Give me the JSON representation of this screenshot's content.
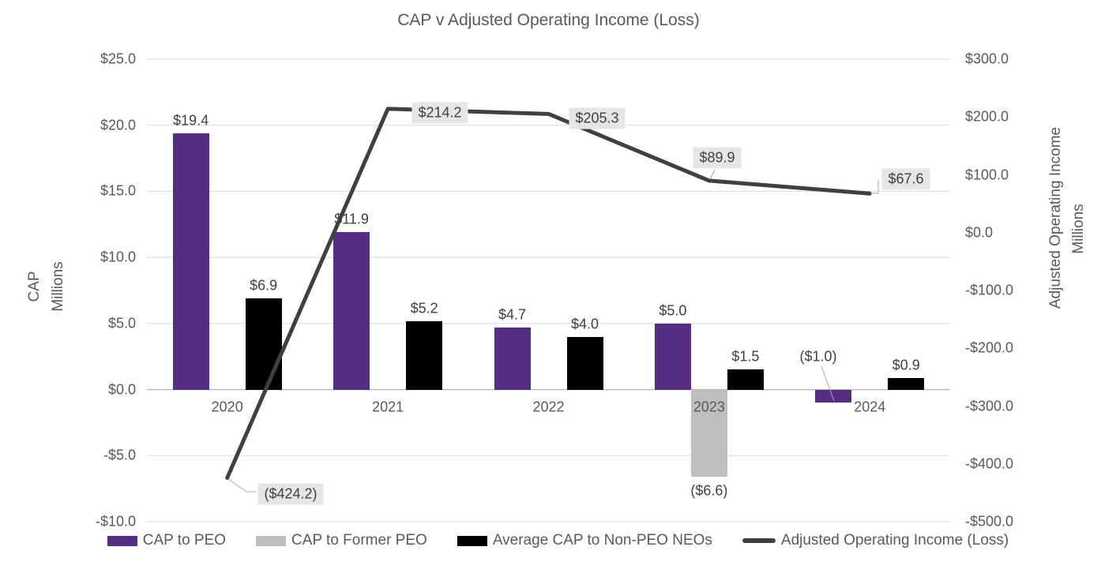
{
  "chart_data": {
    "type": "combo (clustered bar + line, dual axis)",
    "title": "CAP v Adjusted Operating Income (Loss)",
    "categories": [
      "2020",
      "2021",
      "2022",
      "2023",
      "2024"
    ],
    "bar_series": [
      {
        "name": "CAP to PEO",
        "color": "#552E84",
        "axis": "left",
        "values": [
          19.4,
          11.9,
          4.7,
          5.0,
          -1.0
        ],
        "labels": [
          "$19.4",
          "$11.9",
          "$4.7",
          "$5.0",
          "($1.0)"
        ]
      },
      {
        "name": "CAP to Former PEO",
        "color": "#BFBFBF",
        "axis": "left",
        "values": [
          null,
          null,
          null,
          -6.6,
          null
        ],
        "labels": [
          null,
          null,
          null,
          "($6.6)",
          null
        ]
      },
      {
        "name": "Average CAP to Non-PEO NEOs",
        "color": "#000000",
        "axis": "left",
        "values": [
          6.9,
          5.2,
          4.0,
          1.5,
          0.9
        ],
        "labels": [
          "$6.9",
          "$5.2",
          "$4.0",
          "$1.5",
          "$0.9"
        ]
      }
    ],
    "line_series": {
      "name": "Adjusted Operating Income (Loss)",
      "color": "#404040",
      "axis": "right",
      "values": [
        -424.2,
        214.2,
        205.3,
        89.9,
        67.6
      ],
      "labels": [
        "($424.2)",
        "$214.2",
        "$205.3",
        "$89.9",
        "$67.6"
      ]
    },
    "left_axis": {
      "title": "CAP",
      "units": "Millions",
      "max": 25,
      "min": -10,
      "step": 5,
      "ticks": [
        "$25.0",
        "$20.0",
        "$15.0",
        "$10.0",
        "$5.0",
        "$0.0",
        "-$5.0",
        "-$10.0"
      ]
    },
    "right_axis": {
      "title": "Adjusted Operating Income",
      "units": "Millions",
      "max": 300,
      "min": -500,
      "step": 100,
      "ticks": [
        "$300.0",
        "$200.0",
        "$100.0",
        "$0.0",
        "-$100.0",
        "-$200.0",
        "-$300.0",
        "-$400.0",
        "-$500.0"
      ]
    },
    "legend": [
      {
        "label": "CAP to PEO",
        "swatch": "bar",
        "color": "#552E84"
      },
      {
        "label": "CAP to Former PEO",
        "swatch": "bar",
        "color": "#BFBFBF"
      },
      {
        "label": "Average CAP to Non-PEO NEOs",
        "swatch": "bar",
        "color": "#000000"
      },
      {
        "label": "Adjusted Operating Income (Loss)",
        "swatch": "line",
        "color": "#404040"
      }
    ],
    "legend_position": "bottom",
    "grid": true,
    "colors": {
      "gridline": "#D9D9D9",
      "zero_line": "#BFBDBD",
      "axis_text": "#595959",
      "label_text": "#404040",
      "line_label_bg": "#E7E6E6",
      "leader": "#A6A6A6",
      "background": "#FFFFFF"
    }
  }
}
